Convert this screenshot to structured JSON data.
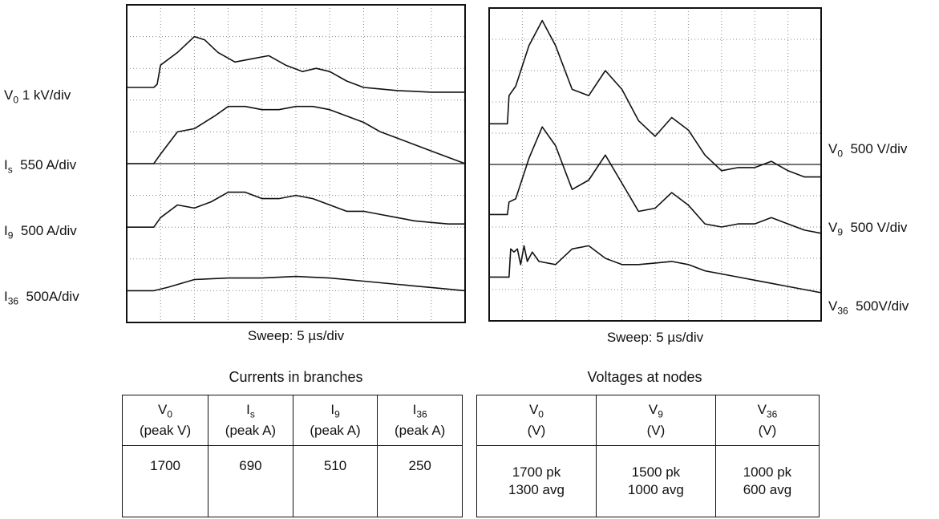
{
  "left_panel": {
    "sweep_label": "Sweep: 5 µs/div",
    "channel_labels": [
      {
        "sym": "V",
        "sub": "0",
        "text": " 1 kV/div"
      },
      {
        "sym": "I",
        "sub": "s",
        "text": "  550 A/div"
      },
      {
        "sym": "I",
        "sub": "9",
        "text": "  500 A/div"
      },
      {
        "sym": "I",
        "sub": "36",
        "text": "  500A/div"
      }
    ]
  },
  "right_panel": {
    "sweep_label": "Sweep: 5 µs/div",
    "channel_labels": [
      {
        "sym": "V",
        "sub": "0",
        "text": "  500 V/div"
      },
      {
        "sym": "V",
        "sub": "9",
        "text": "  500 V/div"
      },
      {
        "sym": "V",
        "sub": "36",
        "text": "  500V/div"
      }
    ]
  },
  "currents_table": {
    "title": "Currents in branches",
    "headers": [
      {
        "sym": "V",
        "sub": "0",
        "unit": "(peak V)"
      },
      {
        "sym": "I",
        "sub": "s",
        "unit": "(peak A)"
      },
      {
        "sym": "I",
        "sub": "9",
        "unit": "(peak A)"
      },
      {
        "sym": "I",
        "sub": "36",
        "unit": "(peak A)"
      }
    ],
    "rows": [
      [
        "1700",
        "690",
        "510",
        "250"
      ]
    ]
  },
  "voltages_table": {
    "title": "Voltages at nodes",
    "headers": [
      {
        "sym": "V",
        "sub": "0",
        "unit": "(V)"
      },
      {
        "sym": "V",
        "sub": "9",
        "unit": "(V)"
      },
      {
        "sym": "V",
        "sub": "36",
        "unit": "(V)"
      }
    ],
    "rows": [
      [
        [
          "1700 pk",
          "1300 avg"
        ],
        [
          "1500 pk",
          "1000 avg"
        ],
        [
          "1000 pk",
          "600 avg"
        ]
      ]
    ]
  },
  "chart_data": [
    {
      "type": "line",
      "x_unit": "div (5 µs/div)",
      "xlim": [
        0,
        10
      ],
      "ylim": [
        0,
        10
      ],
      "grid": true,
      "series": [
        {
          "name": "V0 1 kV/div",
          "x": [
            0,
            0.8,
            0.9,
            1.0,
            1.5,
            2.0,
            2.3,
            2.7,
            3.2,
            3.7,
            4.2,
            4.7,
            5.2,
            5.6,
            6.0,
            6.5,
            7.0,
            7.5,
            8.0,
            9.0,
            10.0
          ],
          "y": [
            7.4,
            7.4,
            7.5,
            8.1,
            8.5,
            9.0,
            8.9,
            8.5,
            8.2,
            8.3,
            8.4,
            8.1,
            7.9,
            8.0,
            7.9,
            7.6,
            7.4,
            7.35,
            7.3,
            7.25,
            7.25
          ]
        },
        {
          "name": "Is 550 A/div",
          "x": [
            0,
            0.8,
            1.0,
            1.5,
            2.0,
            2.6,
            3.0,
            3.5,
            4.0,
            4.5,
            5.0,
            5.5,
            6.0,
            6.5,
            7.0,
            7.5,
            8.0,
            8.5,
            9.0,
            9.5,
            10.0
          ],
          "y": [
            5.0,
            5.0,
            5.3,
            6.0,
            6.1,
            6.5,
            6.8,
            6.8,
            6.7,
            6.7,
            6.8,
            6.8,
            6.7,
            6.5,
            6.3,
            6.0,
            5.8,
            5.6,
            5.4,
            5.2,
            5.0
          ]
        },
        {
          "name": "I9 500 A/div",
          "x": [
            0,
            0.8,
            1.0,
            1.5,
            2.0,
            2.5,
            3.0,
            3.5,
            4.0,
            4.5,
            5.0,
            5.5,
            6.0,
            6.5,
            7.0,
            7.5,
            8.0,
            8.5,
            9.0,
            9.5,
            10.0
          ],
          "y": [
            3.0,
            3.0,
            3.3,
            3.7,
            3.6,
            3.8,
            4.1,
            4.1,
            3.9,
            3.9,
            4.0,
            3.9,
            3.7,
            3.5,
            3.5,
            3.4,
            3.3,
            3.2,
            3.15,
            3.1,
            3.1
          ]
        },
        {
          "name": "I36 500A/div",
          "x": [
            0,
            0.8,
            1.2,
            2.0,
            3.0,
            4.0,
            5.0,
            6.0,
            7.0,
            8.0,
            9.0,
            10.0
          ],
          "y": [
            1.0,
            1.0,
            1.1,
            1.35,
            1.4,
            1.4,
            1.45,
            1.4,
            1.3,
            1.2,
            1.1,
            1.0
          ]
        }
      ]
    },
    {
      "type": "line",
      "x_unit": "div (5 µs/div)",
      "xlim": [
        0,
        10
      ],
      "ylim": [
        0,
        10
      ],
      "grid": true,
      "series": [
        {
          "name": "V0 500 V/div",
          "x": [
            0,
            0.55,
            0.6,
            0.8,
            1.2,
            1.6,
            2.0,
            2.5,
            3.0,
            3.5,
            4.0,
            4.5,
            5.0,
            5.5,
            6.0,
            6.5,
            7.0,
            7.5,
            8.0,
            8.5,
            9.0,
            9.5,
            10.0
          ],
          "y": [
            6.3,
            6.3,
            7.2,
            7.5,
            8.8,
            9.6,
            8.8,
            7.4,
            7.2,
            8.0,
            7.4,
            6.4,
            5.9,
            6.5,
            6.1,
            5.3,
            4.8,
            4.9,
            4.9,
            5.1,
            4.8,
            4.6,
            4.6
          ]
        },
        {
          "name": "V9 500 V/div",
          "x": [
            0,
            0.55,
            0.6,
            0.8,
            1.2,
            1.6,
            2.0,
            2.5,
            3.0,
            3.5,
            4.0,
            4.5,
            5.0,
            5.5,
            6.0,
            6.5,
            7.0,
            7.5,
            8.0,
            8.5,
            9.0,
            9.5,
            10.0
          ],
          "y": [
            3.4,
            3.4,
            3.8,
            3.9,
            5.2,
            6.2,
            5.6,
            4.2,
            4.5,
            5.3,
            4.4,
            3.5,
            3.6,
            4.1,
            3.7,
            3.1,
            3.0,
            3.1,
            3.1,
            3.3,
            3.1,
            2.9,
            2.8
          ]
        },
        {
          "name": "V36 500V/div",
          "x": [
            0,
            0.6,
            0.65,
            0.75,
            0.85,
            0.95,
            1.05,
            1.15,
            1.3,
            1.5,
            2.0,
            2.5,
            3.0,
            3.5,
            4.0,
            4.5,
            5.0,
            5.5,
            6.0,
            6.5,
            7.0,
            7.5,
            8.0,
            8.5,
            9.0,
            9.5,
            10.0
          ],
          "y": [
            1.4,
            1.4,
            2.3,
            2.2,
            2.3,
            1.8,
            2.4,
            1.9,
            2.2,
            1.9,
            1.8,
            2.3,
            2.4,
            2.0,
            1.8,
            1.8,
            1.85,
            1.9,
            1.8,
            1.6,
            1.5,
            1.4,
            1.3,
            1.2,
            1.1,
            1.0,
            0.9
          ]
        }
      ]
    }
  ]
}
